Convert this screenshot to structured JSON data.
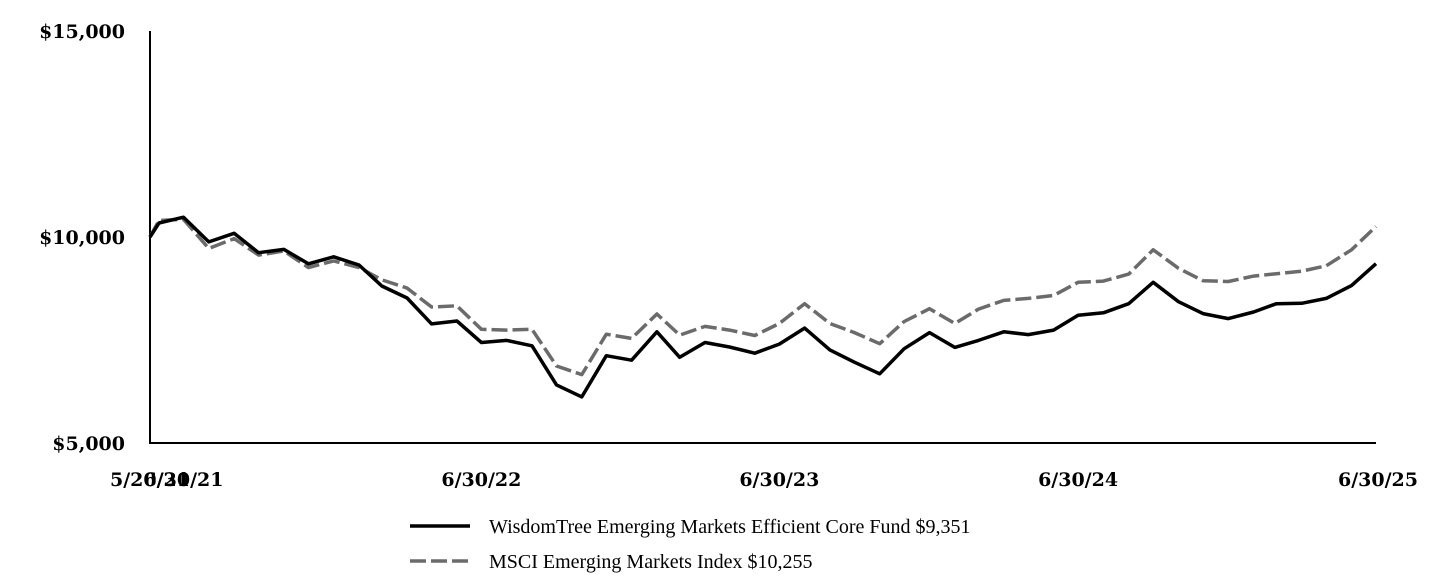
{
  "chart_data": {
    "type": "line",
    "title": "",
    "xlabel": "",
    "ylabel": "",
    "ylim": [
      5000,
      15000
    ],
    "yticks": [
      5000,
      10000,
      15000
    ],
    "ytick_labels": [
      "$5,000",
      "$10,000",
      "$15,000"
    ],
    "xlim": [
      "2021-05-20",
      "2025-06-30"
    ],
    "xticks": [
      "2021-05-20",
      "2021-06-30",
      "2022-06-30",
      "2023-06-30",
      "2024-06-30",
      "2025-06-30"
    ],
    "xtick_labels": [
      "5/20/21",
      "6/30/21",
      "6/30/22",
      "6/30/23",
      "6/30/24",
      "6/30/25"
    ],
    "grid": false,
    "legend_placement": "bottom-center",
    "x": [
      "2021-05-20",
      "2021-05-31",
      "2021-06-30",
      "2021-07-31",
      "2021-08-31",
      "2021-09-30",
      "2021-10-31",
      "2021-11-30",
      "2021-12-31",
      "2022-01-31",
      "2022-02-28",
      "2022-03-31",
      "2022-04-30",
      "2022-05-31",
      "2022-06-30",
      "2022-07-31",
      "2022-08-31",
      "2022-09-30",
      "2022-10-31",
      "2022-11-30",
      "2022-12-31",
      "2023-01-31",
      "2023-02-28",
      "2023-03-31",
      "2023-04-30",
      "2023-05-31",
      "2023-06-30",
      "2023-07-31",
      "2023-08-31",
      "2023-09-30",
      "2023-10-31",
      "2023-11-30",
      "2023-12-31",
      "2024-01-31",
      "2024-02-29",
      "2024-03-31",
      "2024-04-30",
      "2024-05-31",
      "2024-06-30",
      "2024-07-31",
      "2024-08-31",
      "2024-09-30",
      "2024-10-31",
      "2024-11-30",
      "2024-12-31",
      "2025-01-31",
      "2025-02-28",
      "2025-03-31",
      "2025-04-30",
      "2025-05-31",
      "2025-06-30"
    ],
    "series": [
      {
        "name": "WisdomTree Emerging Markets Efficient Core Fund $9,351",
        "color": "#000000",
        "dash": "solid",
        "values": [
          10000,
          10340,
          10480,
          9880,
          10090,
          9620,
          9700,
          9350,
          9520,
          9320,
          8810,
          8520,
          7890,
          7960,
          7440,
          7490,
          7360,
          6410,
          6120,
          7120,
          7010,
          7700,
          7080,
          7440,
          7330,
          7180,
          7400,
          7790,
          7260,
          6960,
          6680,
          7290,
          7680,
          7320,
          7490,
          7700,
          7630,
          7740,
          8100,
          8160,
          8380,
          8900,
          8430,
          8140,
          8020,
          8180,
          8380,
          8390,
          8510,
          8820,
          9351
        ]
      },
      {
        "name": "MSCI Emerging Markets Index $10,255",
        "color": "#6b6b6b",
        "dash": "dashed",
        "values": [
          10000,
          10400,
          10430,
          9720,
          9960,
          9560,
          9660,
          9260,
          9420,
          9260,
          8960,
          8760,
          8300,
          8330,
          7760,
          7740,
          7760,
          6870,
          6660,
          7640,
          7540,
          8130,
          7620,
          7830,
          7740,
          7610,
          7900,
          8380,
          7900,
          7680,
          7410,
          7950,
          8260,
          7900,
          8250,
          8460,
          8510,
          8580,
          8900,
          8930,
          9100,
          9690,
          9240,
          8940,
          8920,
          9050,
          9110,
          9170,
          9300,
          9690,
          10255
        ]
      }
    ]
  }
}
